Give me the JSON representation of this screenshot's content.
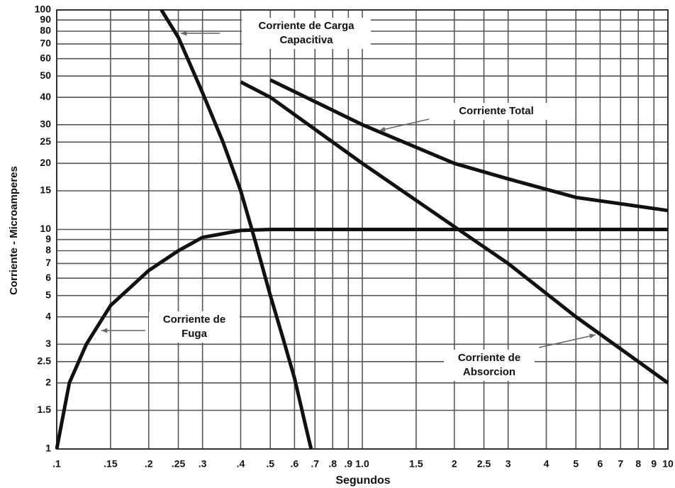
{
  "chart_data": {
    "type": "line",
    "xlabel": "Segundos",
    "ylabel": "Corriente - Microamperes",
    "xscale": "log",
    "yscale": "log",
    "grid": true,
    "xlim": [
      0.1,
      10
    ],
    "ylim": [
      1,
      100
    ],
    "xticks": [
      {
        "value": 0.1,
        "label": ".1"
      },
      {
        "value": 0.15,
        "label": ".15"
      },
      {
        "value": 0.2,
        "label": ".2"
      },
      {
        "value": 0.25,
        "label": ".25"
      },
      {
        "value": 0.3,
        "label": ".3"
      },
      {
        "value": 0.4,
        "label": ".4"
      },
      {
        "value": 0.5,
        "label": ".5"
      },
      {
        "value": 0.6,
        "label": ".6"
      },
      {
        "value": 0.7,
        "label": ".7"
      },
      {
        "value": 0.8,
        "label": ".8"
      },
      {
        "value": 0.9,
        "label": ".9"
      },
      {
        "value": 1,
        "label": "1.0"
      },
      1.5,
      2,
      2.5,
      3,
      4,
      5,
      6,
      7,
      8,
      9,
      10
    ],
    "yticks": [
      1,
      1.5,
      2,
      2.5,
      3,
      4,
      5,
      6,
      7,
      8,
      9,
      10,
      15,
      20,
      25,
      30,
      40,
      50,
      60,
      70,
      80,
      90,
      100
    ],
    "series": [
      {
        "label": [
          "Corriente de Carga",
          "Capacitiva"
        ],
        "color": "#111111",
        "x": [
          0.22,
          0.25,
          0.3,
          0.35,
          0.4,
          0.45,
          0.5,
          0.55,
          0.6,
          0.65,
          0.68
        ],
        "values": [
          100,
          75,
          42,
          25,
          15,
          8.5,
          5,
          3.2,
          2.1,
          1.3,
          1
        ]
      },
      {
        "label": [
          "Corriente de",
          "Fuga"
        ],
        "color": "#111111",
        "x": [
          0.1,
          0.11,
          0.125,
          0.15,
          0.2,
          0.25,
          0.3,
          0.4,
          0.5,
          1,
          10
        ],
        "values": [
          1,
          2,
          3,
          4.5,
          6.5,
          8,
          9.2,
          9.9,
          10,
          10,
          10
        ]
      },
      {
        "label": [
          "Corriente de",
          "Absorcion"
        ],
        "color": "#111111",
        "x": [
          0.4,
          0.5,
          1,
          2,
          3,
          5,
          10
        ],
        "values": [
          47,
          40,
          20,
          10.3,
          7,
          4,
          2
        ]
      },
      {
        "label": [
          "Corriente Total"
        ],
        "color": "#111111",
        "x": [
          0.5,
          1,
          2,
          3,
          5,
          10
        ],
        "values": [
          48,
          30,
          20,
          17,
          14,
          12.2
        ]
      }
    ]
  }
}
